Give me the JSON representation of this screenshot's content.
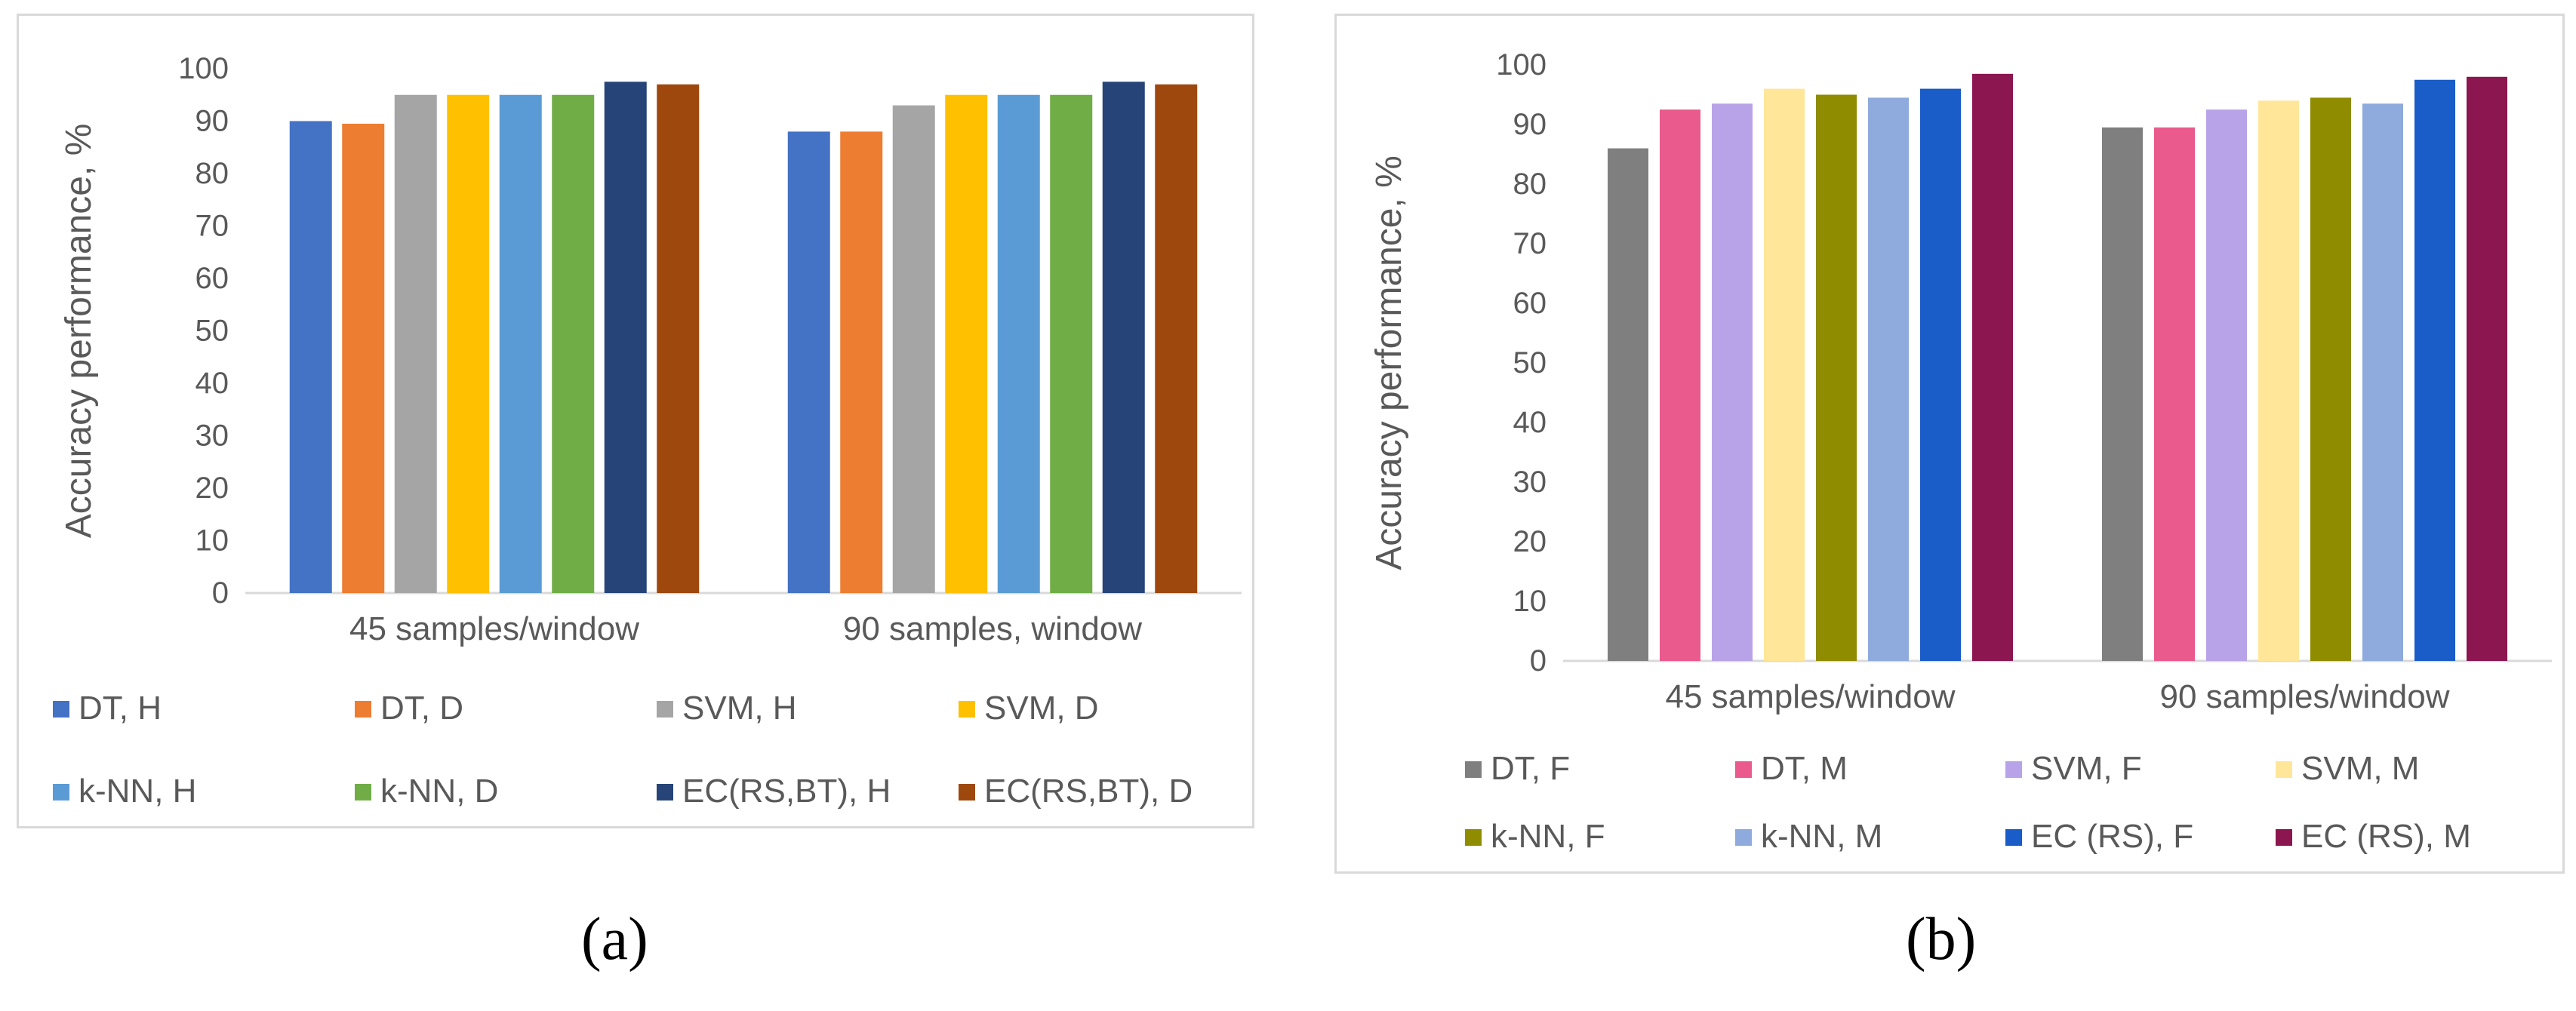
{
  "chart_data": [
    {
      "type": "bar",
      "title": "",
      "xlabel": "",
      "ylabel": "Accuracy performance, %",
      "ylim": [
        0,
        100
      ],
      "yticks": [
        0,
        10,
        20,
        30,
        40,
        50,
        60,
        70,
        80,
        90,
        100
      ],
      "categories": [
        "45 samples/window",
        "90 samples, window"
      ],
      "legend_position": "bottom",
      "series": [
        {
          "name": "DT, H",
          "color": "#4472c4",
          "values": [
            90,
            88
          ]
        },
        {
          "name": "DT, D",
          "color": "#ed7d31",
          "values": [
            89.5,
            88
          ]
        },
        {
          "name": "SVM, H",
          "color": "#a5a5a5",
          "values": [
            95,
            93
          ]
        },
        {
          "name": "SVM, D",
          "color": "#ffc000",
          "values": [
            95,
            95
          ]
        },
        {
          "name": "k-NN, H",
          "color": "#5b9bd5",
          "values": [
            95,
            95
          ]
        },
        {
          "name": "k-NN, D",
          "color": "#70ad47",
          "values": [
            95,
            95
          ]
        },
        {
          "name": "EC(RS,BT), H",
          "color": "#264478",
          "values": [
            97.5,
            97.5
          ]
        },
        {
          "name": "EC(RS,BT), D",
          "color": "#9e480e",
          "values": [
            97,
            97
          ]
        }
      ],
      "caption": "(a)"
    },
    {
      "type": "bar",
      "title": "",
      "xlabel": "",
      "ylabel": "Accuracy performance, %",
      "ylim": [
        0,
        100
      ],
      "yticks": [
        0,
        10,
        20,
        30,
        40,
        50,
        60,
        70,
        80,
        90,
        100
      ],
      "categories": [
        "45 samples/window",
        "90 samples/window"
      ],
      "legend_position": "bottom",
      "series": [
        {
          "name": "DT, F",
          "color": "#7f7f7f",
          "values": [
            86,
            89.5
          ]
        },
        {
          "name": "DT, M",
          "color": "#ea5a8c",
          "values": [
            92.5,
            89.5
          ]
        },
        {
          "name": "SVM, F",
          "color": "#b8a3e8",
          "values": [
            93.5,
            92.5
          ]
        },
        {
          "name": "SVM, M",
          "color": "#ffe699",
          "values": [
            96,
            94
          ]
        },
        {
          "name": "k-NN, F",
          "color": "#8f8c00",
          "values": [
            95,
            94.5
          ]
        },
        {
          "name": "k-NN, M",
          "color": "#8faadc",
          "values": [
            94.5,
            93.5
          ]
        },
        {
          "name": "EC (RS), F",
          "color": "#1a5cc8",
          "values": [
            96,
            97.5
          ]
        },
        {
          "name": "EC (RS), M",
          "color": "#8c1650",
          "values": [
            98.5,
            98
          ]
        }
      ],
      "caption": "(b)"
    }
  ]
}
